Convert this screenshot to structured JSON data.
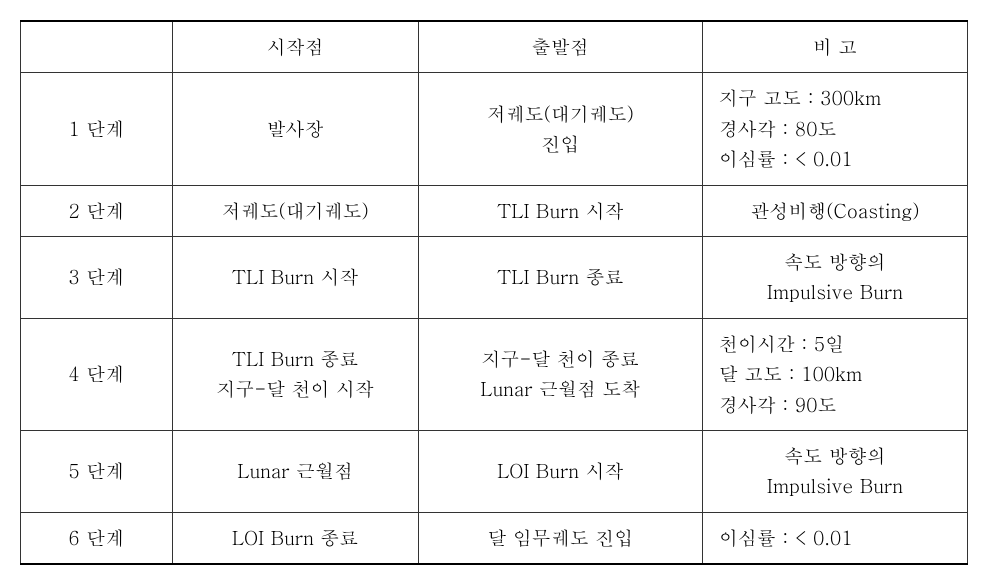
{
  "table": {
    "type": "table",
    "background_color": "#ffffff",
    "border_color": "#333333",
    "text_color": "#000000",
    "font_size": 19,
    "columns": [
      {
        "label": "",
        "width": "16%",
        "align": "center"
      },
      {
        "label": "시작점",
        "width": "26%",
        "align": "center"
      },
      {
        "label": "출발점",
        "width": "30%",
        "align": "center"
      },
      {
        "label": "비  고",
        "width": "28%",
        "align": "left"
      }
    ],
    "rows": [
      {
        "stage": "1 단계",
        "start": "발사장",
        "depart": "저궤도(대기궤도)\n진입",
        "remark": "지구 고도 : 300km\n경사각 : 80도\n이심률 : < 0.01",
        "remark_align": "left"
      },
      {
        "stage": "2 단계",
        "start": "저궤도(대기궤도)",
        "depart": "TLI Burn 시작",
        "remark": "관성비행(Coasting)",
        "remark_align": "center"
      },
      {
        "stage": "3 단계",
        "start": "TLI Burn 시작",
        "depart": "TLI Burn 종료",
        "remark": "속도 방향의\nImpulsive Burn",
        "remark_align": "center"
      },
      {
        "stage": "4 단계",
        "start": "TLI Burn 종료\n지구-달 천이 시작",
        "depart": "지구-달 천이 종료\nLunar 근월점 도착",
        "remark": "천이시간 : 5일\n달 고도 : 100km\n경사각 : 90도",
        "remark_align": "left"
      },
      {
        "stage": "5 단계",
        "start": "Lunar 근월점",
        "depart": "LOI Burn 시작",
        "remark": "속도 방향의\nImpulsive Burn",
        "remark_align": "center"
      },
      {
        "stage": "6 단계",
        "start": "LOI Burn 종료",
        "depart": "달 임무궤도 진입",
        "remark": "이심률 : < 0.01",
        "remark_align": "left"
      }
    ]
  }
}
